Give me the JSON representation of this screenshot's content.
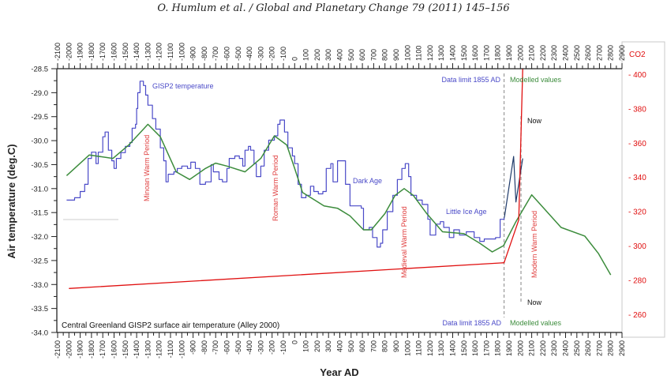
{
  "header": {
    "citation": "O. Humlum et al. / Global and Planetary Change 79 (2011) 145–156"
  },
  "chart_data": {
    "type": "line",
    "xlabel": "Year AD",
    "ylabel": "Air temperature (deg.C)",
    "y2label": "CO2",
    "xlim": [
      -2100,
      2900
    ],
    "ylim": [
      -34.0,
      -28.5
    ],
    "y2lim": [
      250,
      405
    ],
    "x_ticks": [
      -2100,
      -2000,
      -1900,
      -1800,
      -1700,
      -1600,
      -1500,
      -1400,
      -1300,
      -1200,
      -1100,
      -1000,
      -900,
      -800,
      -700,
      -600,
      -500,
      -400,
      -300,
      -200,
      -100,
      0,
      100,
      200,
      300,
      400,
      500,
      600,
      700,
      800,
      900,
      1000,
      1100,
      1200,
      1300,
      1400,
      1500,
      1600,
      1700,
      1800,
      1900,
      2000,
      2100,
      2200,
      2300,
      2400,
      2500,
      2600,
      2700,
      2800,
      2900
    ],
    "y_ticks": [
      "-28.5",
      "-29.0",
      "-29.5",
      "-30.0",
      "-30.5",
      "-31.0",
      "-31.5",
      "-32.0",
      "-32.5",
      "-33.0",
      "-33.5",
      "-34.0"
    ],
    "y2_ticks": [
      "400",
      "380",
      "360",
      "340",
      "320",
      "300",
      "280",
      "260"
    ],
    "grid": false,
    "colors": {
      "gisp2": "#4a4ac8",
      "modelled_recent": "#1f3a6a",
      "model": "#3c8c3c",
      "co2": "#e01010",
      "annotation_red": "#e04040",
      "axis": "#222222"
    },
    "series": [
      {
        "name": "GISP2 temperature",
        "axis": "left",
        "x": [
          -2020,
          -1950,
          -1900,
          -1860,
          -1830,
          -1800,
          -1760,
          -1740,
          -1700,
          -1680,
          -1650,
          -1620,
          -1600,
          -1580,
          -1540,
          -1500,
          -1460,
          -1440,
          -1410,
          -1400,
          -1390,
          -1370,
          -1340,
          -1320,
          -1300,
          -1260,
          -1230,
          -1190,
          -1160,
          -1140,
          -1120,
          -1070,
          -1040,
          -1000,
          -950,
          -920,
          -880,
          -840,
          -790,
          -740,
          -720,
          -670,
          -640,
          -600,
          -580,
          -530,
          -490,
          -460,
          -440,
          -410,
          -390,
          -360,
          -340,
          -300,
          -270,
          -230,
          -180,
          -150,
          -130,
          -90,
          -60,
          -20,
          0,
          30,
          60,
          100,
          140,
          170,
          210,
          250,
          280,
          320,
          340,
          380,
          420,
          450,
          490,
          590,
          610,
          660,
          690,
          730,
          760,
          780,
          820,
          870,
          910,
          950,
          980,
          1010,
          1030,
          1080,
          1130,
          1180,
          1200,
          1250,
          1290,
          1320,
          1370,
          1410,
          1460,
          1520,
          1590,
          1640,
          1680,
          1780,
          1820,
          1855
        ],
        "y": [
          -31.24,
          -31.19,
          -31.06,
          -30.91,
          -30.37,
          -30.24,
          -30.48,
          -30.24,
          -29.92,
          -29.82,
          -30.2,
          -30.42,
          -30.58,
          -30.37,
          -30.25,
          -30.12,
          -30.04,
          -29.74,
          -29.66,
          -29.33,
          -29.0,
          -28.76,
          -28.85,
          -29.05,
          -29.26,
          -29.54,
          -29.76,
          -30.15,
          -30.42,
          -30.86,
          -30.7,
          -30.65,
          -30.58,
          -30.53,
          -30.58,
          -30.45,
          -30.58,
          -30.91,
          -30.86,
          -30.5,
          -30.65,
          -30.81,
          -30.86,
          -30.58,
          -30.37,
          -30.32,
          -30.37,
          -30.53,
          -30.2,
          -30.12,
          -30.2,
          -30.48,
          -30.75,
          -30.53,
          -30.2,
          -29.99,
          -29.9,
          -29.66,
          -29.57,
          -29.82,
          -30.15,
          -30.32,
          -30.48,
          -30.91,
          -31.19,
          -31.14,
          -30.95,
          -31.06,
          -31.11,
          -31.06,
          -30.58,
          -30.48,
          -30.86,
          -30.42,
          -30.42,
          -30.91,
          -31.36,
          -31.41,
          -31.86,
          -31.81,
          -32.02,
          -32.22,
          -32.14,
          -31.86,
          -31.48,
          -31.14,
          -30.81,
          -30.58,
          -30.48,
          -30.75,
          -31.14,
          -31.24,
          -31.33,
          -31.64,
          -31.97,
          -31.74,
          -31.69,
          -31.81,
          -32.02,
          -31.86,
          -31.97,
          -31.9,
          -32.02,
          -32.1,
          -32.05,
          -32.02,
          -31.64,
          -31.61
        ]
      },
      {
        "axis": "left",
        "key": "modelled_recent",
        "x": [
          1855,
          1860,
          1940,
          1960,
          2020
        ],
        "y": [
          -31.61,
          -31.57,
          -30.33,
          -31.28,
          -30.37
        ]
      },
      {
        "axis": "left",
        "key": "model",
        "x": [
          -2020,
          -1820,
          -1610,
          -1470,
          -1300,
          -1190,
          -1050,
          -930,
          -790,
          -700,
          -600,
          -440,
          -300,
          -180,
          -70,
          0,
          70,
          260,
          380,
          490,
          610,
          680,
          800,
          890,
          970,
          1050,
          1170,
          1310,
          1500,
          1640,
          1750,
          1850,
          1960,
          2100,
          2360,
          2570,
          2690,
          2800
        ],
        "y": [
          -30.73,
          -30.3,
          -30.37,
          -30.09,
          -29.66,
          -29.92,
          -30.65,
          -30.81,
          -30.58,
          -30.47,
          -30.53,
          -30.65,
          -30.37,
          -29.9,
          -30.09,
          -30.58,
          -31.08,
          -31.36,
          -31.41,
          -31.57,
          -31.86,
          -31.86,
          -31.52,
          -31.14,
          -31.0,
          -31.14,
          -31.52,
          -31.9,
          -31.94,
          -32.14,
          -32.32,
          -32.19,
          -31.69,
          -31.13,
          -31.81,
          -31.99,
          -32.35,
          -32.8
        ]
      },
      {
        "axis": "right",
        "key": "co2",
        "x": [
          -2000,
          1855,
          1985,
          2020
        ],
        "y": [
          275,
          290,
          315,
          403
        ]
      }
    ],
    "vertical_markers": [
      {
        "x": 1855,
        "style": "dashed"
      },
      {
        "x": 2005,
        "style": "dashed"
      }
    ],
    "annotations": {
      "gisp2": "GISP2 temperature",
      "minoan": "Minoan Warm Period",
      "roman": "Roman Warm Period",
      "dark_age": "Dark Age",
      "medieval": "Medieval Warm Period",
      "little_ice_age": "Little Ice Age",
      "modern": "Modern Warm Period",
      "data_limit_top": "Data limit 1855 AD",
      "modelled_top": "Modelled values",
      "now_top": "Now",
      "now_bottom": "Now",
      "data_limit_bottom": "Data limit 1855 AD",
      "modelled_bottom": "Modelled values",
      "source": "Central Greenland GISP2 surface air temperature (Alley 2000)"
    }
  }
}
